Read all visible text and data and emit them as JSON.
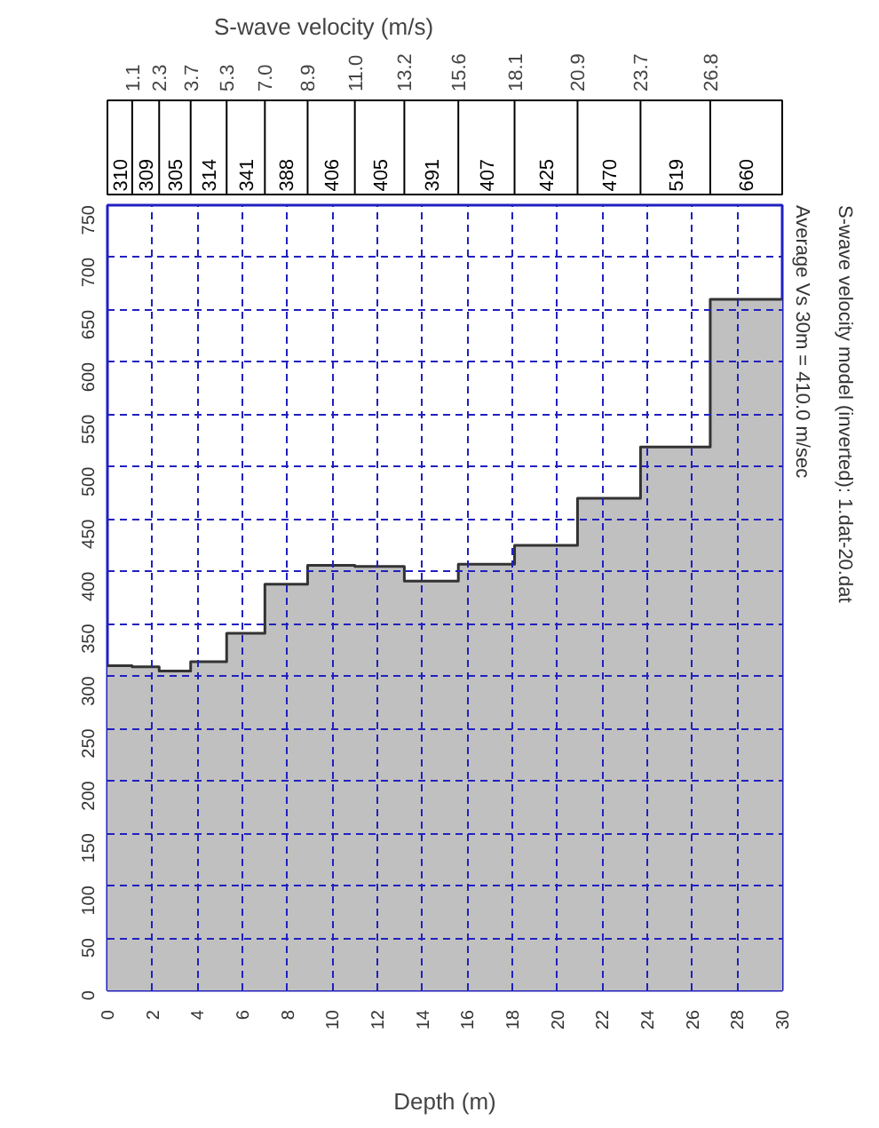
{
  "chart_data": {
    "type": "area",
    "xlabel": "Depth (m)",
    "ylabel": "S-wave velocity (m/s)",
    "x": [
      0,
      1.1,
      2.3,
      3.7,
      5.3,
      7.0,
      8.9,
      11.0,
      13.2,
      15.6,
      18.1,
      20.9,
      23.7,
      26.8,
      30
    ],
    "series": [
      {
        "color": "#c0c0c0",
        "values": [
          310,
          309,
          305,
          314,
          341,
          388,
          406,
          405,
          391,
          407,
          425,
          470,
          519,
          660,
          660
        ]
      },
      {
        "type": "step",
        "color": "#333333",
        "values": [
          310,
          309,
          305,
          314,
          341,
          388,
          406,
          405,
          391,
          407,
          425,
          470,
          519,
          660,
          660
        ]
      }
    ],
    "xlim": [
      0,
      30
    ],
    "xticks": [
      0,
      2,
      4,
      6,
      8,
      10,
      12,
      14,
      16,
      18,
      20,
      22,
      24,
      26,
      28,
      30
    ],
    "x2lim": [
      0,
      30
    ],
    "x2ticks": [
      1.1,
      2.3,
      3.7,
      5.3,
      {
        "value": 7,
        "label": "7.0"
      },
      8.9,
      {
        "value": 11,
        "label": "11.0"
      },
      13.2,
      15.6,
      18.1,
      20.9,
      23.7,
      26.8
    ],
    "ylim": [
      0,
      750
    ],
    "yticks": [
      0,
      50,
      100,
      150,
      200,
      250,
      300,
      350,
      400,
      450,
      500,
      550,
      600,
      650,
      700,
      750
    ],
    "grid": true,
    "line_style": "solid",
    "annotations": [
      "S-wave velocity model (inverted): 1.dat-20.dat",
      "Average Vs 30m = 410.0 m/sec",
      "310",
      "309",
      "305",
      "314",
      "341",
      "388",
      "406",
      "405",
      "391",
      "407",
      "425",
      "470",
      "519",
      "660"
    ]
  }
}
